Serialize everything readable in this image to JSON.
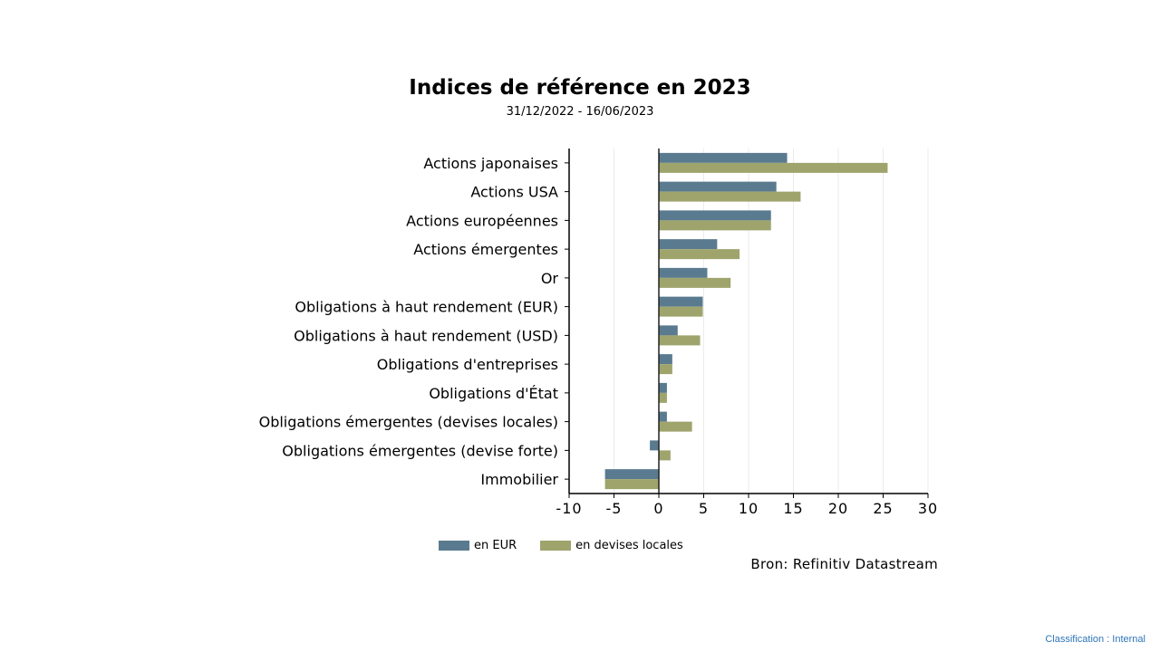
{
  "chart_data": {
    "type": "bar",
    "orientation": "horizontal",
    "title": "Indices de référence en 2023",
    "subtitle": "31/12/2022 - 16/06/2023",
    "categories": [
      "Actions japonaises",
      "Actions USA",
      "Actions européennes",
      "Actions émergentes",
      "Or",
      "Obligations à haut rendement (EUR)",
      "Obligations à haut rendement (USD)",
      "Obligations d'entreprises",
      "Obligations d'État",
      "Obligations émergentes (devises locales)",
      "Obligations émergentes (devise forte)",
      "Immobilier"
    ],
    "series": [
      {
        "name": "en EUR",
        "color": "#5a7b8f",
        "values": [
          14.3,
          13.1,
          12.5,
          6.5,
          5.4,
          4.9,
          2.1,
          1.5,
          0.9,
          0.9,
          -1.0,
          -6.0
        ]
      },
      {
        "name": "en devises locales",
        "color": "#9ea46c",
        "values": [
          25.5,
          15.8,
          12.5,
          9.0,
          8.0,
          4.9,
          4.6,
          1.5,
          0.9,
          3.7,
          1.3,
          -6.0
        ]
      }
    ],
    "xlim": [
      -10,
      30
    ],
    "xticks": [
      "-10",
      "-5",
      "0",
      "5",
      "10",
      "15",
      "20",
      "25",
      "30"
    ],
    "grid": true,
    "legend_position": "bottom",
    "source": "Bron: Refinitiv Datastream"
  },
  "footer": {
    "classification": "Classification : Internal"
  }
}
